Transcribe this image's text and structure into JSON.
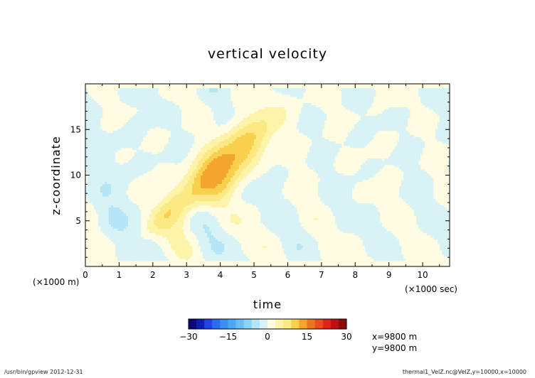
{
  "chart_data": {
    "type": "heatmap",
    "title": "vertical velocity",
    "xlabel": "time",
    "ylabel": "z-coordinate",
    "x_unit_label": "(×1000 sec)",
    "y_unit_label": "(×1000 m)",
    "xlim": [
      0,
      10.8
    ],
    "ylim": [
      0,
      20
    ],
    "x_ticks": [
      "0",
      "1",
      "2",
      "3",
      "4",
      "5",
      "6",
      "7",
      "8",
      "9",
      "10"
    ],
    "y_ticks": [
      "5",
      "10",
      "15"
    ],
    "y_tick_values": [
      5,
      10,
      15
    ],
    "colorbar": {
      "levels": [
        -30,
        -27,
        -24,
        -21,
        -18,
        -15,
        -12,
        -9,
        -6,
        -3,
        0,
        3,
        6,
        9,
        12,
        15,
        18,
        21,
        24,
        27,
        30
      ],
      "tick_labels": [
        "−30",
        "−15",
        "0",
        "15",
        "30"
      ],
      "tick_values": [
        -30,
        -15,
        0,
        15,
        30
      ],
      "colors": [
        "#08087a",
        "#0b1fb4",
        "#1f45e6",
        "#2f6cf3",
        "#3b8ff5",
        "#4aa9f7",
        "#68c0f7",
        "#8bd4f6",
        "#b4e6f5",
        "#d8f3f6",
        "#fffce2",
        "#fdf3a9",
        "#fce983",
        "#f8d04e",
        "#f4a52b",
        "#ee7422",
        "#e94a1e",
        "#e0241a",
        "#c40f12",
        "#8e0a0a"
      ]
    },
    "annotations": [
      "x=9800 m",
      "y=9800 m"
    ]
  },
  "footer": {
    "left": "/usr/bin/gpview  2012-12-31",
    "right": "thermal1_VelZ.nc@VelZ,y=10000,x=10000"
  }
}
